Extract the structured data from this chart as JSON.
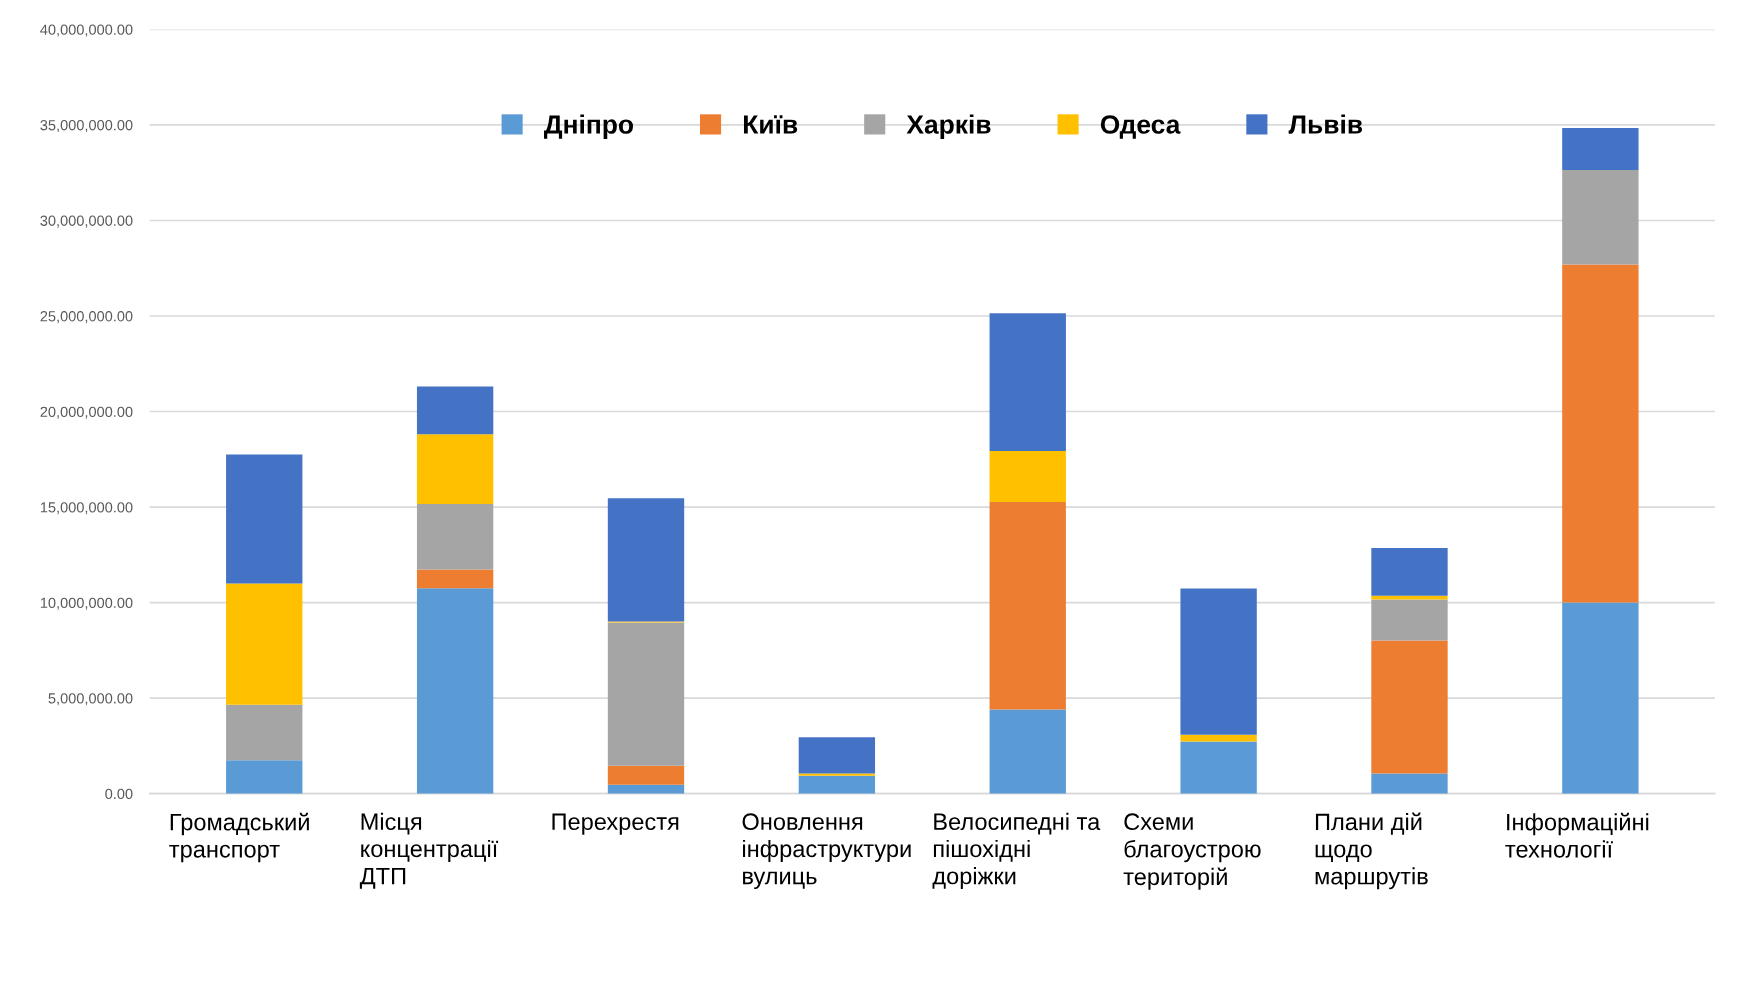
{
  "chart_data": {
    "type": "bar",
    "stacked": true,
    "categories": [
      "Громадський\nтранспорт",
      "Місця\nконцентрації\nДТП",
      "Перехрестя",
      "Оновлення\nінфраструктури\nвулиць",
      "Велосипедні та\nпішохідні\nдоріжки",
      "Схеми\nблагоустрою\nтериторій",
      "Плани дій\nщодо\nмаршрутів",
      "Інформаційні\nтехнології"
    ],
    "series": [
      {
        "name": "Дніпро",
        "color": "#5b9bd5",
        "values": [
          1750000,
          10750000,
          460000,
          930000,
          4410000,
          2730000,
          1050000,
          10000000
        ]
      },
      {
        "name": "Київ",
        "color": "#ed7d31",
        "values": [
          0,
          980000,
          1000000,
          0,
          10860000,
          0,
          6960000,
          17700000
        ]
      },
      {
        "name": "Харків",
        "color": "#a5a5a5",
        "values": [
          2900000,
          3430000,
          7500000,
          0,
          0,
          0,
          2150000,
          4940000
        ]
      },
      {
        "name": "Одеса",
        "color": "#ffc000",
        "values": [
          6350000,
          3650000,
          50000,
          120000,
          2670000,
          350000,
          200000,
          0
        ]
      },
      {
        "name": "Львів",
        "color": "#4472c4",
        "values": [
          6750000,
          2500000,
          6450000,
          1900000,
          7200000,
          7660000,
          2500000,
          2200000
        ]
      }
    ],
    "ylim": [
      0,
      40000000
    ],
    "yticks": [
      {
        "value": 0,
        "label": "0.00"
      },
      {
        "value": 5000000,
        "label": "5,000,000.00"
      },
      {
        "value": 10000000,
        "label": "10,000,000.00"
      },
      {
        "value": 15000000,
        "label": "15,000,000.00"
      },
      {
        "value": 20000000,
        "label": "20,000,000.00"
      },
      {
        "value": 25000000,
        "label": "25,000,000.00"
      },
      {
        "value": 30000000,
        "label": "30,000,000.00"
      },
      {
        "value": 35000000,
        "label": "35,000,000.00"
      },
      {
        "value": 40000000,
        "label": "40,000,000.00"
      }
    ],
    "grid": "y",
    "legend": "top"
  }
}
